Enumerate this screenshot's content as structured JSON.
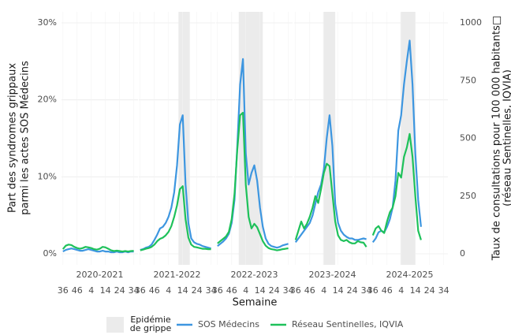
{
  "chart_data": {
    "type": "line",
    "ylabel": [
      "Part des syndromes grippaux",
      "parmi les actes SOS Médecins"
    ],
    "y2label": [
      "Taux de consultations pour 100 000 habitants□",
      "(réseau Sentinelles, IQVIA)"
    ],
    "xlabel": "Semaine",
    "ylim": [
      0,
      30
    ],
    "yticks": [
      {
        "value": 0,
        "label": "0%"
      },
      {
        "value": 10,
        "label": "10%"
      },
      {
        "value": 20,
        "label": "20%"
      },
      {
        "value": 30,
        "label": "30%"
      }
    ],
    "y2lim": [
      0,
      1000
    ],
    "y2ticks": [
      0,
      250,
      500,
      750,
      1000
    ],
    "xlim": [
      -1,
      53
    ],
    "xticks": [
      {
        "value": 0,
        "label": "36"
      },
      {
        "value": 10,
        "label": "46"
      },
      {
        "value": 20,
        "label": "4"
      },
      {
        "value": 30,
        "label": "14"
      },
      {
        "value": 40,
        "label": "24"
      },
      {
        "value": 50,
        "label": "34"
      }
    ],
    "grid": true,
    "epidemic_label": "Epidémie de grippe",
    "epidemic_color": "#ebebeb",
    "series": [
      {
        "name": "SOS Médecins",
        "color": "#3d96e0",
        "axis": "y"
      },
      {
        "name": "Réseau Sentinelles, IQVIA",
        "color": "#1ec15a",
        "axis": "y2"
      }
    ],
    "panels": [
      {
        "title": "2020-2021",
        "epidemic": null,
        "x": [
          0,
          2,
          4,
          6,
          8,
          10,
          12,
          14,
          16,
          18,
          20,
          22,
          24,
          26,
          28,
          30,
          32,
          34,
          36,
          38,
          40,
          42,
          44,
          46,
          48,
          50
        ],
        "values": [
          [
            0.3,
            0.5,
            0.6,
            0.7,
            0.6,
            0.5,
            0.4,
            0.4,
            0.5,
            0.6,
            0.5,
            0.4,
            0.3,
            0.3,
            0.4,
            0.3,
            0.3,
            0.2,
            0.2,
            0.3,
            0.2,
            0.2,
            0.3,
            0.2,
            0.3,
            0.3
          ],
          [
            20,
            35,
            40,
            38,
            30,
            25,
            22,
            25,
            30,
            28,
            25,
            20,
            18,
            22,
            30,
            28,
            22,
            15,
            12,
            14,
            12,
            10,
            12,
            10,
            12,
            13
          ]
        ]
      },
      {
        "title": "2021-2022",
        "epidemic": [
          27,
          35
        ],
        "x": [
          0,
          2,
          4,
          6,
          8,
          10,
          12,
          14,
          16,
          18,
          20,
          22,
          24,
          26,
          28,
          30,
          32,
          34,
          36,
          38,
          40,
          42,
          44,
          46,
          48,
          50
        ],
        "values": [
          [
            0.5,
            0.6,
            0.8,
            0.9,
            1.2,
            1.8,
            2.5,
            3.3,
            3.5,
            4.0,
            4.8,
            6.0,
            8.0,
            11.5,
            16.8,
            18.0,
            9.0,
            4.0,
            2.0,
            1.5,
            1.3,
            1.2,
            1.0,
            0.9,
            0.8,
            0.7
          ],
          [
            15,
            18,
            22,
            25,
            30,
            40,
            55,
            65,
            70,
            80,
            95,
            120,
            160,
            210,
            280,
            293,
            150,
            70,
            40,
            30,
            28,
            25,
            22,
            22,
            20,
            20
          ]
        ]
      },
      {
        "title": "2022-2023",
        "epidemic": [
          15,
          32
        ],
        "x": [
          0,
          2,
          4,
          6,
          8,
          10,
          12,
          14,
          16,
          18,
          20,
          22,
          24,
          26,
          28,
          30,
          32,
          34,
          36,
          38,
          40,
          42,
          44,
          46,
          48,
          50
        ],
        "values": [
          [
            1.0,
            1.3,
            1.6,
            2.0,
            2.6,
            4.0,
            7.0,
            14.0,
            22.0,
            25.3,
            13.0,
            9.0,
            10.5,
            11.5,
            9.5,
            6.0,
            3.5,
            2.0,
            1.3,
            1.0,
            0.9,
            0.8,
            0.9,
            1.1,
            1.2,
            1.3
          ],
          [
            45,
            55,
            65,
            75,
            95,
            150,
            260,
            450,
            600,
            611,
            300,
            160,
            110,
            130,
            115,
            85,
            55,
            35,
            25,
            20,
            18,
            15,
            17,
            20,
            22,
            24
          ]
        ]
      },
      {
        "title": "2023-2024",
        "epidemic": [
          19.5,
          28
        ],
        "x": [
          0,
          2,
          4,
          6,
          8,
          10,
          12,
          14,
          16,
          18,
          20,
          22,
          24,
          26,
          28,
          30,
          32,
          34,
          36,
          38,
          40,
          42,
          44,
          46,
          48,
          50
        ],
        "values": [
          [
            1.5,
            2.0,
            2.5,
            3.0,
            3.5,
            4.0,
            5.0,
            6.5,
            8.0,
            9.0,
            11.0,
            15.0,
            18.0,
            14.0,
            6.5,
            4.0,
            3.0,
            2.5,
            2.2,
            2.0,
            2.0,
            1.8,
            1.8,
            1.9,
            2.0,
            1.9
          ],
          [
            60,
            100,
            140,
            110,
            130,
            160,
            200,
            250,
            220,
            280,
            350,
            390,
            380,
            260,
            140,
            80,
            60,
            55,
            60,
            50,
            45,
            45,
            55,
            50,
            48,
            30
          ]
        ]
      },
      {
        "title": "2024-2025",
        "epidemic": [
          19.5,
          30
        ],
        "x": [
          0,
          2,
          4,
          6,
          8,
          10,
          12,
          14,
          16,
          18,
          20,
          22,
          24,
          26,
          28,
          30,
          32,
          34
        ],
        "values": [
          [
            1.5,
            2.0,
            2.8,
            3.0,
            2.8,
            3.5,
            4.5,
            6.0,
            9.5,
            16.0,
            18.0,
            22.0,
            25.0,
            27.7,
            22.0,
            13.0,
            7.0,
            3.5
          ],
          [
            80,
            110,
            120,
            100,
            90,
            140,
            180,
            200,
            250,
            350,
            330,
            420,
            460,
            519,
            420,
            250,
            100,
            60
          ]
        ]
      }
    ]
  }
}
